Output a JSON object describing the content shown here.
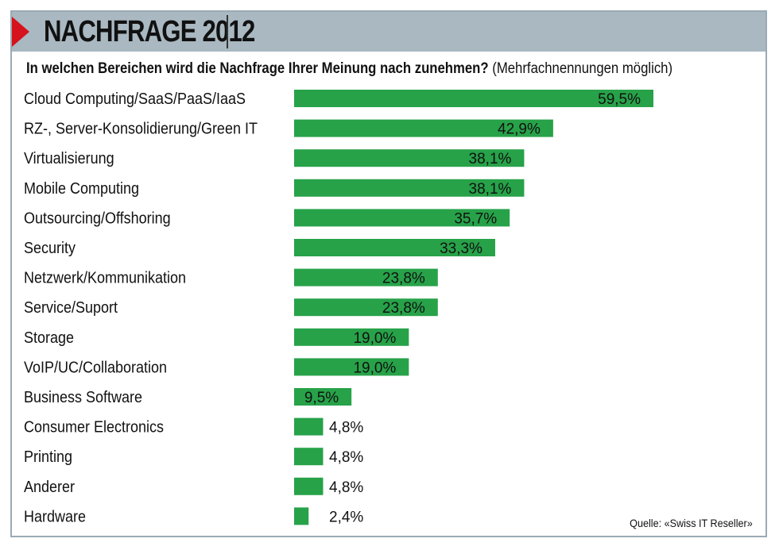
{
  "header": {
    "title": "NACHFRAGE 2012"
  },
  "question": {
    "main": "In welchen Bereichen wird die Nachfrage Ihrer Meinung nach zunehmen?",
    "note": "(Mehrfachnennungen möglich)"
  },
  "source": "Quelle: «Swiss IT Reseller»",
  "colors": {
    "bar": "#27a249",
    "header_band": "#a9b8c1",
    "accent": "#d6121c"
  },
  "chart_data": {
    "type": "bar",
    "orientation": "horizontal",
    "categories": [
      "Cloud Computing/SaaS/PaaS/IaaS",
      "RZ-, Server-Konsolidierung/Green IT",
      "Virtualisierung",
      "Mobile Computing",
      "Outsourcing/Offshoring",
      "Security",
      "Netzwerk/Kommunikation",
      "Service/Suport",
      "Storage",
      "VoIP/UC/Collaboration",
      "Business Software",
      "Consumer Electronics",
      "Printing",
      "Anderer",
      "Hardware"
    ],
    "values": [
      59.5,
      42.9,
      38.1,
      38.1,
      35.7,
      33.3,
      23.8,
      23.8,
      19.0,
      19.0,
      9.5,
      4.8,
      4.8,
      4.8,
      2.4
    ],
    "value_labels": [
      "59,5%",
      "42,9%",
      "38,1%",
      "38,1%",
      "35,7%",
      "33,3%",
      "23,8%",
      "23,8%",
      "19,0%",
      "19,0%",
      "9,5%",
      "4,8%",
      "4,8%",
      "4,8%",
      "2,4%"
    ],
    "xlim": [
      0,
      60
    ],
    "grid": false,
    "legend": "none"
  }
}
